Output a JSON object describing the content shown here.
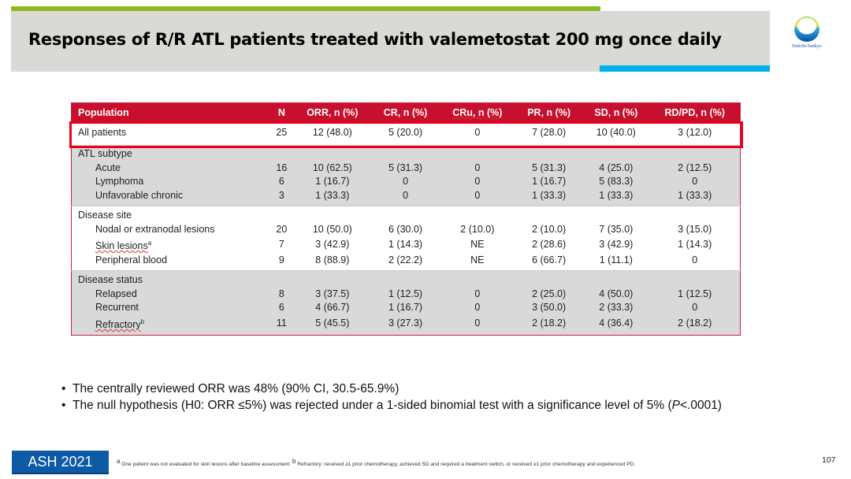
{
  "slide": {
    "title": "Responses of R/R ATL patients treated with valemetostat 200 mg once daily",
    "logo_text": "Daiichi-Sankyo",
    "accent_colors": {
      "green_bar": "#8cba1c",
      "blue_bar": "#00b2e8",
      "table_header": "#c8102e",
      "highlight_box": "#e8001c",
      "badge": "#0d5aa7"
    }
  },
  "table": {
    "headers": [
      "Population",
      "N",
      "ORR, n (%)",
      "CR, n (%)",
      "CRu, n (%)",
      "PR, n (%)",
      "SD, n (%)",
      "RD/PD, n (%)"
    ],
    "all_patients": {
      "label": "All patients",
      "cells": [
        "25",
        "12 (48.0)",
        "5 (20.0)",
        "0",
        "7 (28.0)",
        "10 (40.0)",
        "3 (12.0)"
      ]
    },
    "groups": [
      {
        "title": "ATL subtype",
        "rows": [
          {
            "label": "Acute",
            "sup": "",
            "cells": [
              "16",
              "10 (62.5)",
              "5 (31.3)",
              "0",
              "5 (31.3)",
              "4 (25.0)",
              "2 (12.5)"
            ]
          },
          {
            "label": "Lymphoma",
            "sup": "",
            "cells": [
              "6",
              "1 (16.7)",
              "0",
              "0",
              "1 (16.7)",
              "5 (83.3)",
              "0"
            ]
          },
          {
            "label": "Unfavorable chronic",
            "sup": "",
            "cells": [
              "3",
              "1 (33.3)",
              "0",
              "0",
              "1 (33.3)",
              "1 (33.3)",
              "1 (33.3)"
            ]
          }
        ]
      },
      {
        "title": "Disease site",
        "rows": [
          {
            "label": "Nodal or extranodal lesions",
            "sup": "",
            "cells": [
              "20",
              "10 (50.0)",
              "6 (30.0)",
              "2 (10.0)",
              "2 (10.0)",
              "7 (35.0)",
              "3 (15.0)"
            ]
          },
          {
            "label": "Skin lesions",
            "sup": "a",
            "cells": [
              "7",
              "3 (42.9)",
              "1 (14.3)",
              "NE",
              "2 (28.6)",
              "3 (42.9)",
              "1 (14.3)"
            ]
          },
          {
            "label": "Peripheral blood",
            "sup": "",
            "cells": [
              "9",
              "8 (88.9)",
              "2 (22.2)",
              "NE",
              "6 (66.7)",
              "1 (11.1)",
              "0"
            ]
          }
        ]
      },
      {
        "title": "Disease status",
        "rows": [
          {
            "label": "Relapsed",
            "sup": "",
            "cells": [
              "8",
              "3 (37.5)",
              "1 (12.5)",
              "0",
              "2 (25.0)",
              "4 (50.0)",
              "1 (12.5)"
            ]
          },
          {
            "label": "Recurrent",
            "sup": "",
            "cells": [
              "6",
              "4 (66.7)",
              "1 (16.7)",
              "0",
              "3 (50.0)",
              "2 (33.3)",
              "0"
            ]
          },
          {
            "label": "Refractory",
            "sup": "b",
            "cells": [
              "11",
              "5 (45.5)",
              "3 (27.3)",
              "0",
              "2 (18.2)",
              "4 (36.4)",
              "2 (18.2)"
            ]
          }
        ]
      }
    ]
  },
  "bullets": [
    {
      "text": "The centrally reviewed ORR was 48% (90% CI, 30.5-65.9%)"
    },
    {
      "text_before": "The null hypothesis (H0: ORR ≤5%) was rejected under a 1-sided binomial test with a significance level of 5% (",
      "italic": "P",
      "text_after": "<.0001)"
    }
  ],
  "footer": {
    "badge": "ASH 2021",
    "footnote_a_marker": "a",
    "footnote_a": "One patient was not evaluated for skin lesions after baseline assessment.",
    "footnote_b_marker": "b",
    "footnote_b": "Refractory: received ≥1 prior chemotherapy, achieved SD and required a treatment switch, or received ≥1 prior chemotherapy and experienced PD.",
    "page_number": "107"
  }
}
